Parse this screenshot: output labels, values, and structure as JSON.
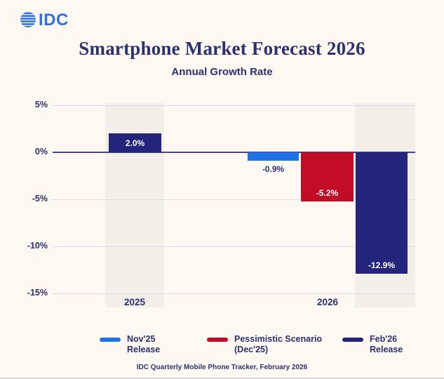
{
  "logo": {
    "text": "IDC"
  },
  "title": "Smartphone Market Forecast 2026",
  "subtitle": "Annual Growth Rate",
  "colors": {
    "background": "#fdf8f2",
    "band": "#f2eee8",
    "navy": "#24247d",
    "blue": "#1d73e8",
    "red": "#c20b24",
    "text_navy": "#2d3070",
    "gridline": "#dcdae8",
    "zero_line": "#42457e",
    "logo_blue": "#2f70df"
  },
  "chart_data": {
    "type": "bar",
    "title": "Smartphone Market Forecast 2026",
    "subtitle": "Annual Growth Rate",
    "ylabel": "Annual Growth Rate (%)",
    "ylim": [
      -15,
      5
    ],
    "grid": true,
    "y_ticks": [
      {
        "label": "5%",
        "value": 5
      },
      {
        "label": "0%",
        "value": 0
      },
      {
        "label": "-5%",
        "value": -5
      },
      {
        "label": "-10%",
        "value": -10
      },
      {
        "label": "-15%",
        "value": -15
      }
    ],
    "categories": [
      "2025",
      "2026"
    ],
    "bars": [
      {
        "category": "2025",
        "series": "Feb'26 Release",
        "value": 2.0,
        "label": "2.0%",
        "color_key": "navy",
        "label_placement": "inside-middle"
      },
      {
        "category": "2026",
        "series": "Nov'25 Release",
        "value": -0.9,
        "label": "-0.9%",
        "color_key": "blue",
        "label_placement": "outside-below"
      },
      {
        "category": "2026",
        "series": "Pessimistic Scenario (Dec'25)",
        "value": -5.2,
        "label": "-5.2%",
        "color_key": "red",
        "label_placement": "inside-bottom"
      },
      {
        "category": "2026",
        "series": "Feb'26 Release",
        "value": -12.9,
        "label": "-12.9%",
        "color_key": "navy",
        "label_placement": "inside-bottom"
      }
    ],
    "legend_position": "bottom",
    "legend": [
      {
        "lines": [
          "Nov'25",
          "Release"
        ],
        "color_key": "blue"
      },
      {
        "lines": [
          "Pessimistic Scenario",
          "(Dec'25)"
        ],
        "color_key": "red"
      },
      {
        "lines": [
          "Feb'26",
          "Release"
        ],
        "color_key": "navy"
      }
    ],
    "source": "IDC Quarterly Mobile Phone Tracker, February 2026"
  }
}
